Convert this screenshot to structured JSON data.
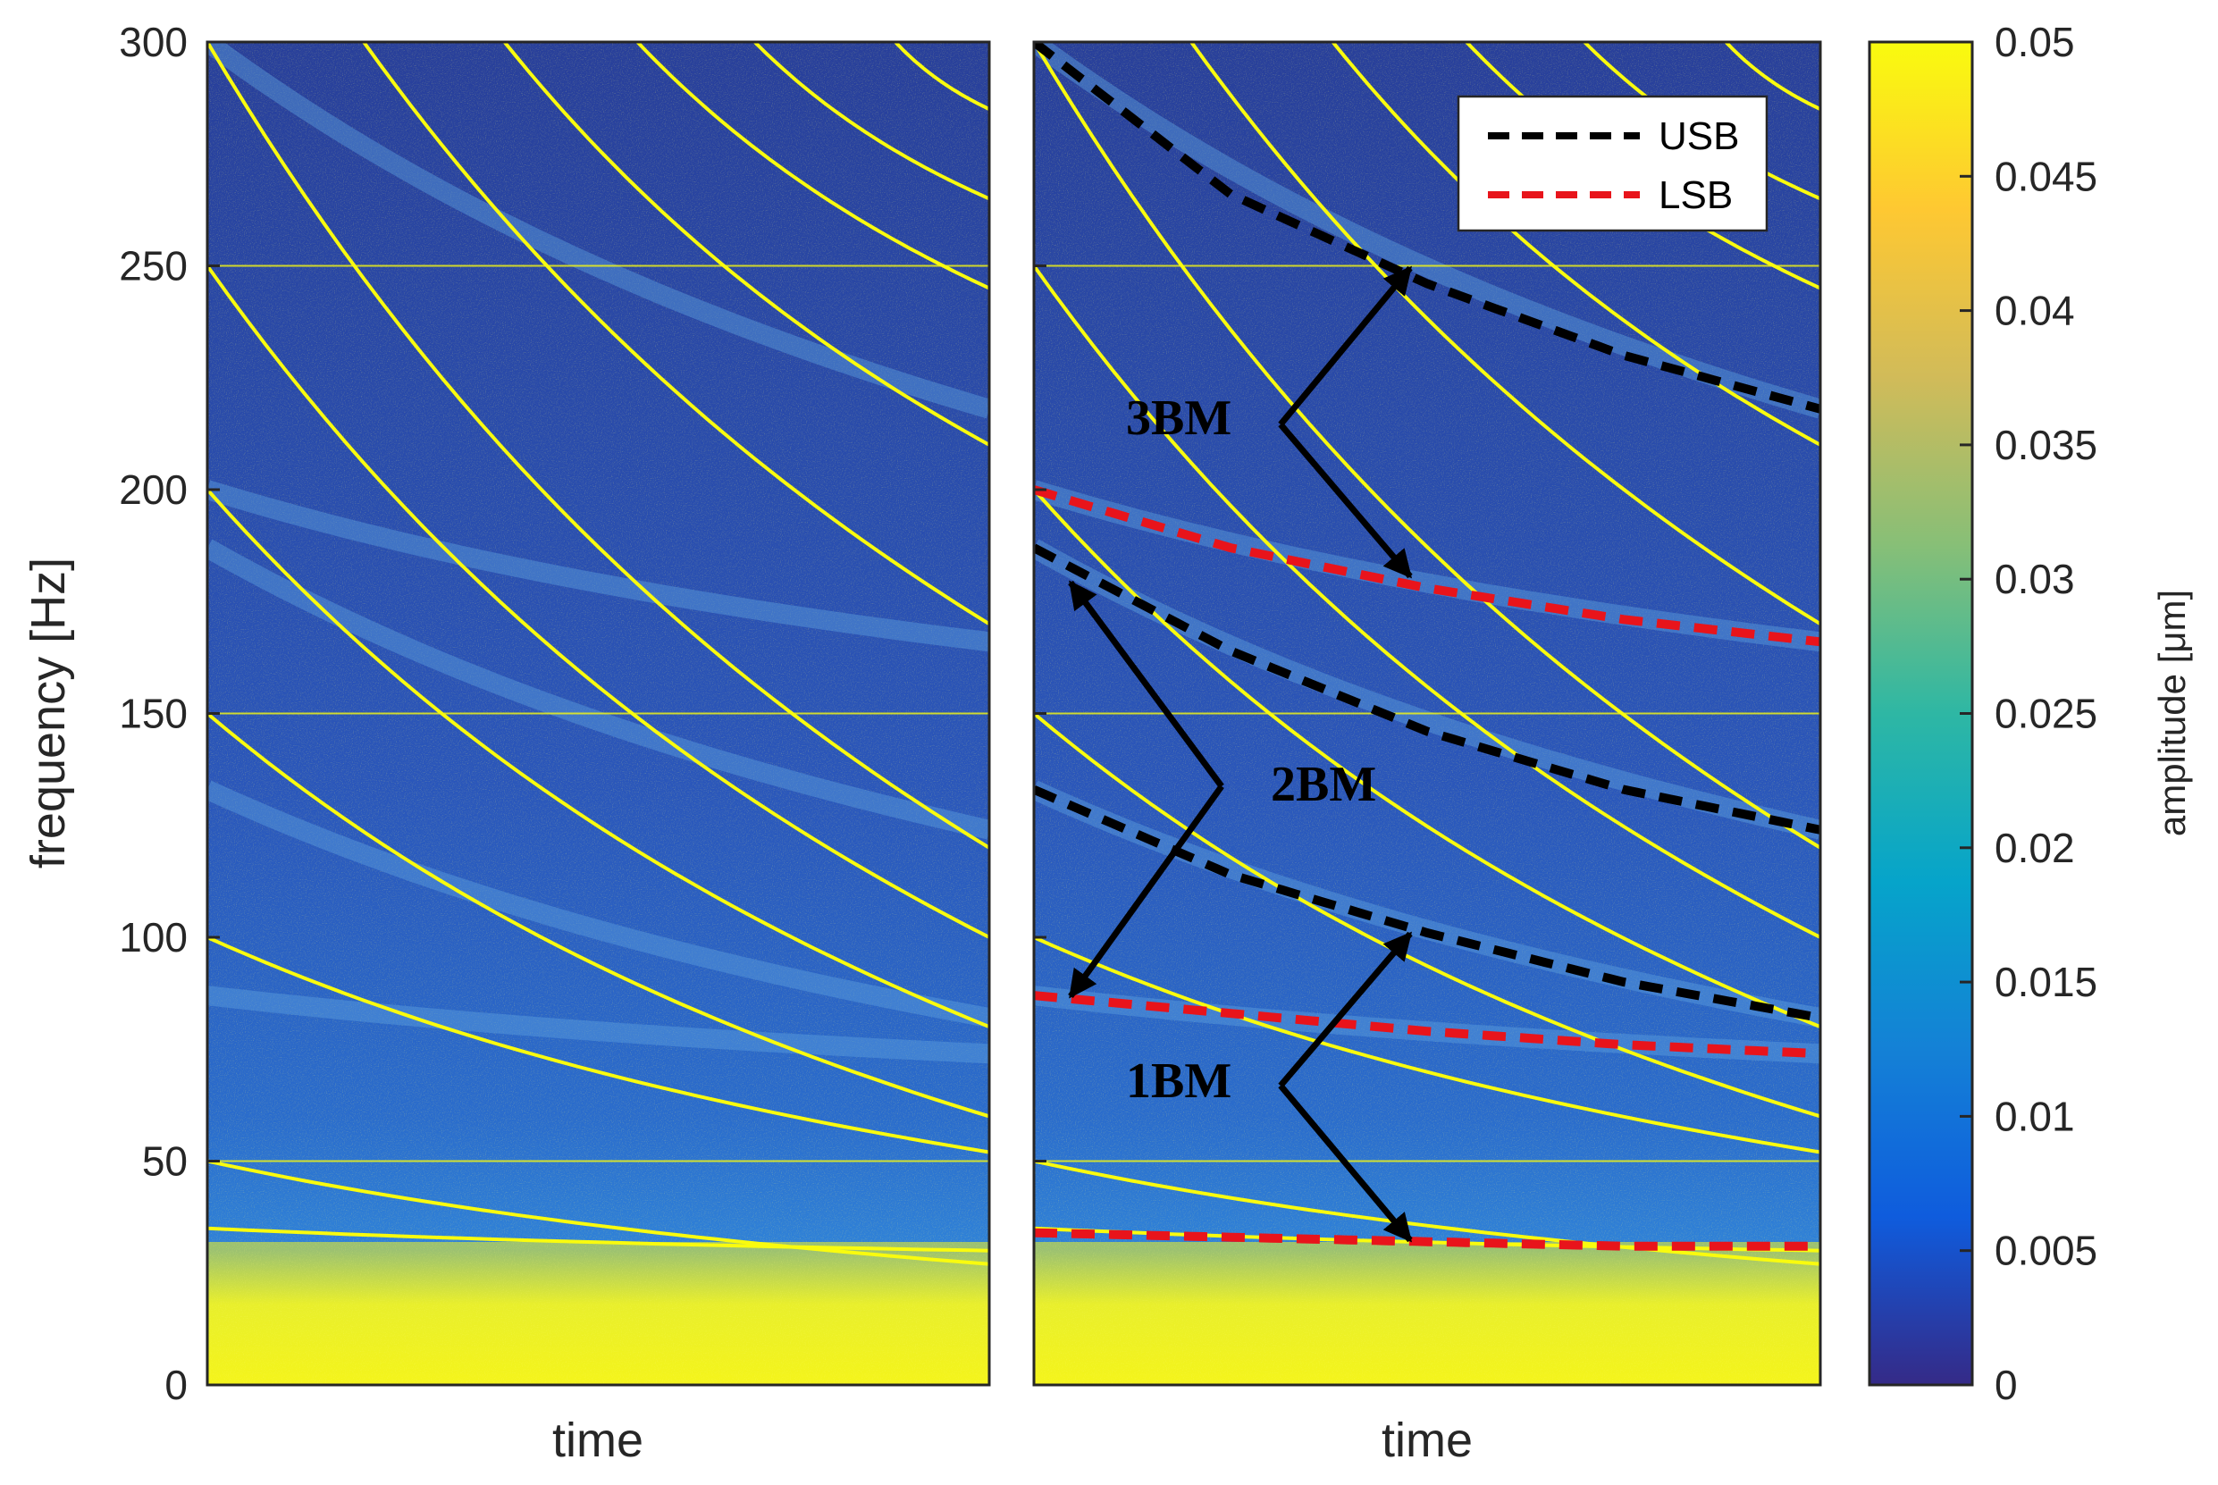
{
  "chart_data": {
    "type": "heatmap",
    "panels": [
      {
        "name": "left",
        "xlabel": "time",
        "ylabel": "frequency [Hz]",
        "ylim": [
          0,
          300
        ],
        "yticks": [
          "0",
          "50",
          "100",
          "150",
          "200",
          "250",
          "300"
        ]
      },
      {
        "name": "right",
        "xlabel": "time",
        "ylim": [
          0,
          300
        ],
        "legend": {
          "placement": "top-right",
          "entries": [
            {
              "label": "USB",
              "color": "#000000",
              "style": "dashed"
            },
            {
              "label": "LSB",
              "color": "#e8141b",
              "style": "dashed"
            }
          ]
        },
        "annotations": [
          "3BM",
          "2BM",
          "1BM"
        ],
        "series": [
          {
            "name": "USB",
            "points": [
              [
                0.0,
                300
              ],
              [
                0.25,
                266
              ],
              [
                0.5,
                246
              ],
              [
                0.75,
                230
              ],
              [
                1.0,
                218
              ]
            ]
          },
          {
            "name": "LSB",
            "points": [
              [
                0.0,
                200
              ],
              [
                0.25,
                187
              ],
              [
                0.5,
                178
              ],
              [
                0.75,
                171
              ],
              [
                1.0,
                166
              ]
            ]
          },
          {
            "name": "USB",
            "points": [
              [
                0.0,
                187
              ],
              [
                0.25,
                164
              ],
              [
                0.5,
                146
              ],
              [
                0.75,
                133
              ],
              [
                1.0,
                124
              ]
            ]
          },
          {
            "name": "USB",
            "points": [
              [
                0.0,
                133
              ],
              [
                0.25,
                114
              ],
              [
                0.5,
                101
              ],
              [
                0.75,
                90
              ],
              [
                1.0,
                82
              ]
            ]
          },
          {
            "name": "LSB",
            "points": [
              [
                0.0,
                87
              ],
              [
                0.25,
                83
              ],
              [
                0.5,
                79
              ],
              [
                0.75,
                76
              ],
              [
                1.0,
                74
              ]
            ]
          },
          {
            "name": "LSB",
            "points": [
              [
                0.0,
                34
              ],
              [
                0.25,
                33
              ],
              [
                0.5,
                32
              ],
              [
                0.75,
                31
              ],
              [
                1.0,
                31
              ]
            ]
          }
        ]
      }
    ],
    "colorbar": {
      "label": "amplitude [μm]",
      "range": [
        0,
        0.05
      ],
      "ticks": [
        "0",
        "0.005",
        "0.01",
        "0.015",
        "0.02",
        "0.025",
        "0.03",
        "0.035",
        "0.04",
        "0.045",
        "0.05"
      ],
      "colormap": [
        "#352a87",
        "#0f5cdd",
        "#1481d6",
        "#06a4ca",
        "#2eb7a4",
        "#87bf77",
        "#d1bb59",
        "#fec832",
        "#f9fb0e"
      ]
    },
    "background_color": "#2a50b4",
    "trace_color": "#f9fb0e",
    "constant_lines_hz": [
      50,
      150,
      250
    ],
    "sweep_lines": [
      {
        "f0": 300,
        "f1": 120
      },
      {
        "f0": 250,
        "f1": 100
      },
      {
        "f0": 200,
        "f1": 80
      },
      {
        "f0": 150,
        "f1": 60
      },
      {
        "f0": 100,
        "f1": 52
      },
      {
        "f0": 50,
        "f1": 27
      },
      {
        "f0": 35,
        "f1": 30
      }
    ],
    "rising_lines": [
      {
        "t0": 0.2,
        "t1": 1.0,
        "f0": 300,
        "f1": 170
      },
      {
        "t0": 0.38,
        "t1": 1.0,
        "f0": 300,
        "f1": 210
      },
      {
        "t0": 0.55,
        "t1": 1.0,
        "f0": 300,
        "f1": 245
      },
      {
        "t0": 0.7,
        "t1": 1.0,
        "f0": 300,
        "f1": 265
      },
      {
        "t0": 0.88,
        "t1": 1.0,
        "f0": 300,
        "f1": 285
      }
    ],
    "bands": [
      {
        "f0": 300,
        "f1": 218
      },
      {
        "f0": 200,
        "f1": 166
      },
      {
        "f0": 187,
        "f1": 124
      },
      {
        "f0": 133,
        "f1": 82
      },
      {
        "f0": 87,
        "f1": 74
      }
    ]
  }
}
